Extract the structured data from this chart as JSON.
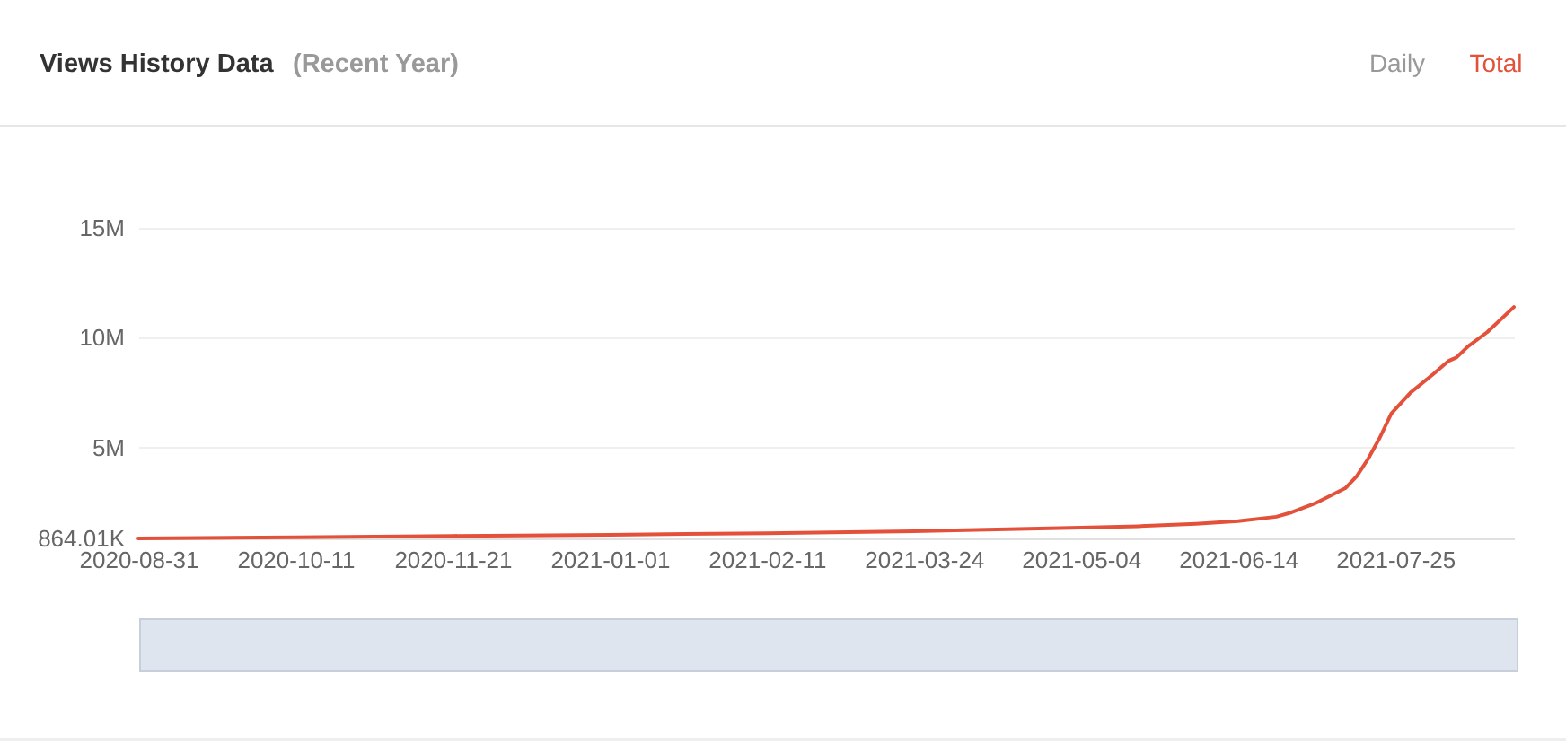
{
  "chart_data": {
    "type": "line",
    "title": "Views History Data",
    "subtitle": "(Recent Year)",
    "annotations": [
      "Daily",
      "Total"
    ],
    "x": [
      "2020-08-31",
      "2020-10-11",
      "2020-11-21",
      "2021-01-01",
      "2021-02-11",
      "2021-03-24",
      "2021-05-04",
      "2021-05-19",
      "2021-06-03",
      "2021-06-14",
      "2021-06-24",
      "2021-06-28",
      "2021-07-04",
      "2021-07-12",
      "2021-07-15",
      "2021-07-18",
      "2021-07-21",
      "2021-07-24",
      "2021-07-29",
      "2021-08-04",
      "2021-08-08",
      "2021-08-10",
      "2021-08-13",
      "2021-08-18",
      "2021-08-25"
    ],
    "series": [
      {
        "color": "#e4513b",
        "values": [
          864010,
          920000,
          980000,
          1030000,
          1100000,
          1200000,
          1350000,
          1420000,
          1530000,
          1650000,
          1850000,
          2050000,
          2450000,
          3150000,
          3700000,
          4500000,
          5450000,
          6550000,
          7500000,
          8350000,
          8950000,
          9100000,
          9600000,
          10250000,
          11400000
        ]
      }
    ],
    "xlim": [
      "2020-08-31",
      "2021-08-25"
    ],
    "xticks": [
      "2020-08-31",
      "2020-10-11",
      "2020-11-21",
      "2021-01-01",
      "2021-02-11",
      "2021-03-24",
      "2021-05-04",
      "2021-06-14",
      "2021-07-25"
    ],
    "ylim": [
      864010,
      15000000
    ],
    "yticks": [
      {
        "value": 864010,
        "label": "864.01K"
      },
      {
        "value": 5000000,
        "label": "5M"
      },
      {
        "value": 10000000,
        "label": "10M"
      },
      {
        "value": 15000000,
        "label": "15M"
      }
    ],
    "grid": "y",
    "line_style": "solid"
  }
}
